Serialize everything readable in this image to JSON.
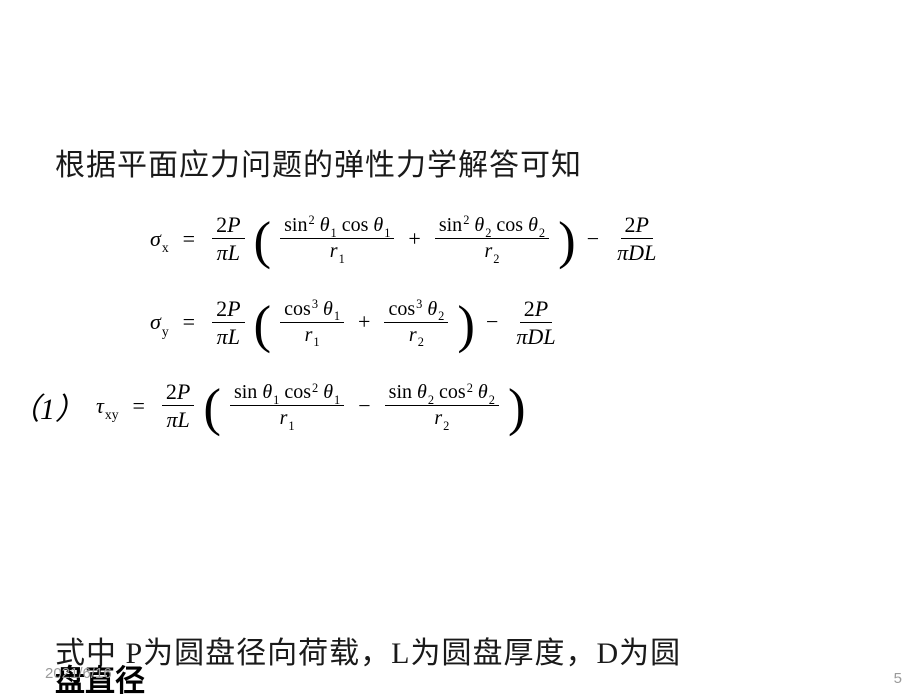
{
  "heading": "根据平面应力问题的弹性力学解答可知",
  "eq1_label": "",
  "eq3_label": "（1）",
  "footer": "式中 P为圆盘径向荷载，L为圆盘厚度，D为圆",
  "cutoff": "盘直径",
  "date": "2021/6/16",
  "page": "5",
  "sym": {
    "sigma": "σ",
    "tau": "τ",
    "theta": "θ",
    "pi": "π",
    "x": "x",
    "y": "y",
    "xy": "xy",
    "P": "P",
    "L": "L",
    "D": "D",
    "r": "r",
    "one": "1",
    "two": "2",
    "three": "3",
    "sin": "sin",
    "cos": "cos",
    "plus": "+",
    "minus": "−",
    "eq": "="
  }
}
